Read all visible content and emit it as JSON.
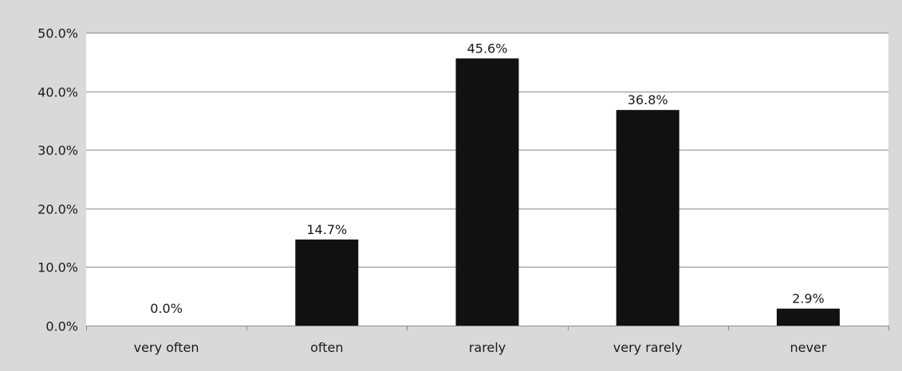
{
  "chart_data": {
    "type": "bar",
    "categories": [
      "very often",
      "often",
      "rarely",
      "very rarely",
      "never"
    ],
    "values": [
      0.0,
      14.7,
      45.6,
      36.8,
      2.9
    ],
    "data_labels": [
      "0.0%",
      "14.7%",
      "45.6%",
      "36.8%",
      "2.9%"
    ],
    "ylim": [
      0,
      50
    ],
    "yticks": [
      0,
      10,
      20,
      30,
      40,
      50
    ],
    "ytick_labels": [
      "0.0%",
      "10.0%",
      "20.0%",
      "30.0%",
      "40.0%",
      "50.0%"
    ],
    "grid": true,
    "legend": "none",
    "bar_color": "#111111",
    "background_color": "#d9d9d9",
    "plot_background_color": "#ffffff",
    "gridline_color": "#8c8c8c"
  }
}
